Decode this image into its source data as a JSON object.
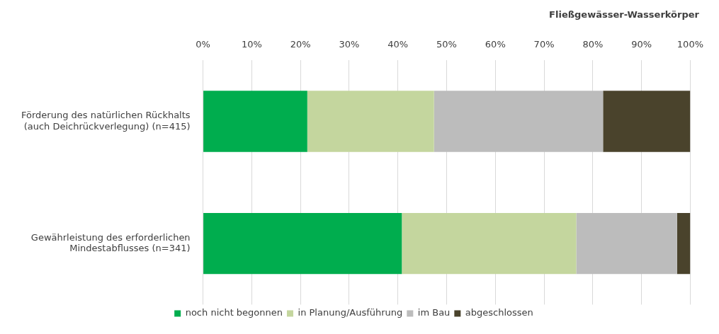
{
  "chart_data": {
    "type": "bar",
    "orientation": "horizontal",
    "stacked": true,
    "title": "Fließgewässer-Wasserkörper",
    "categories": [
      "Förderung des natürlichen Rückhalts (auch Deichrückverlegung) (n=415)",
      "Gewährleistung des erforderlichen Mindestabflusses (n=341)"
    ],
    "series": [
      {
        "name": "noch nicht begonnen",
        "color": "#00ad4e",
        "values": [
          21.4,
          40.8
        ]
      },
      {
        "name": "in Planung/Ausführung",
        "color": "#c4d69e",
        "values": [
          26.0,
          35.8
        ]
      },
      {
        "name": "im Bau",
        "color": "#bcbcbc",
        "values": [
          34.7,
          20.7
        ]
      },
      {
        "name": "abgeschlossen",
        "color": "#4a432c",
        "values": [
          17.9,
          2.7
        ]
      }
    ],
    "xlim": [
      0,
      100
    ],
    "xticks": [
      {
        "value": 0,
        "label": "0%"
      },
      {
        "value": 10,
        "label": "10%"
      },
      {
        "value": 20,
        "label": "20%"
      },
      {
        "value": 30,
        "label": "30%"
      },
      {
        "value": 40,
        "label": "40%"
      },
      {
        "value": 50,
        "label": "50%"
      },
      {
        "value": 60,
        "label": "60%"
      },
      {
        "value": 70,
        "label": "70%"
      },
      {
        "value": 80,
        "label": "80%"
      },
      {
        "value": 90,
        "label": "90%"
      },
      {
        "value": 100,
        "label": "100%"
      }
    ],
    "grid": "x",
    "legend": "bottom"
  }
}
